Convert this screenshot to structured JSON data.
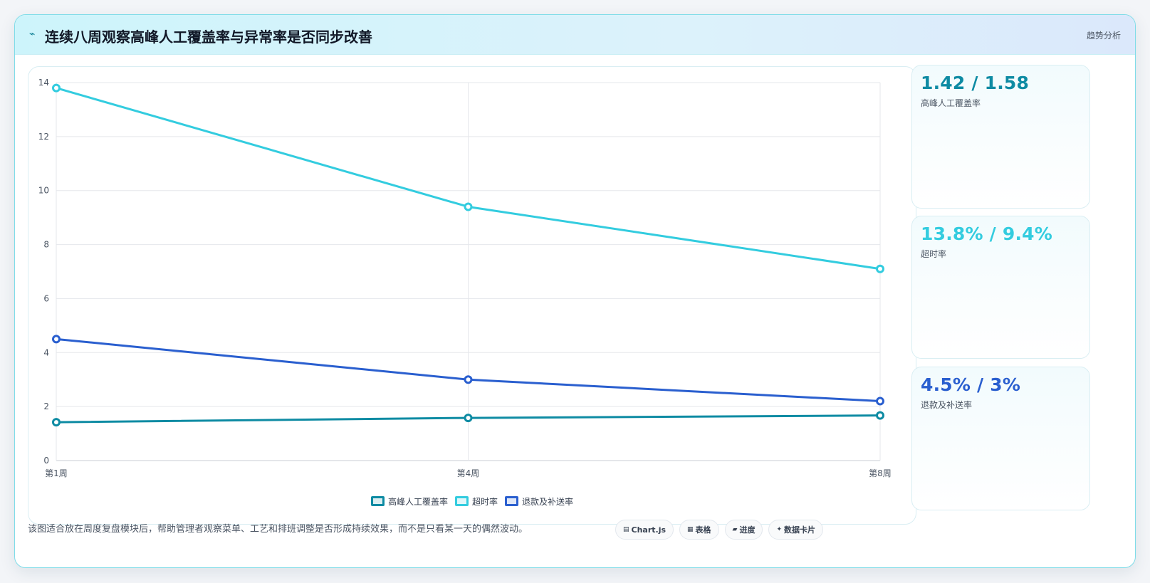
{
  "header": {
    "icon": "bolt-icon",
    "title": "连续八周观察高峰人工覆盖率与异常率是否同步改善",
    "tag": "趋势分析"
  },
  "chart_data": {
    "type": "line",
    "categories": [
      "第1周",
      "第4周",
      "第8周"
    ],
    "y_ticks": [
      "0",
      "2",
      "4",
      "6",
      "8",
      "10",
      "12",
      "14"
    ],
    "ylim": [
      0,
      14
    ],
    "grid": true,
    "legend_position": "bottom",
    "series": [
      {
        "name": "高峰人工覆盖率",
        "values": [
          1.42,
          1.58,
          1.67
        ],
        "color": "#0e8ba3"
      },
      {
        "name": "超时率",
        "values": [
          13.8,
          9.4,
          7.1
        ],
        "color": "#33ccdf"
      },
      {
        "name": "退款及补送率",
        "values": [
          4.5,
          3.0,
          2.2
        ],
        "color": "#2a5fcf"
      }
    ]
  },
  "kpis": [
    {
      "value": "1.42 / 1.58",
      "label": "高峰人工覆盖率",
      "color": "#0e8ba3"
    },
    {
      "value": "13.8% / 9.4%",
      "label": "超时率",
      "color": "#33ccdf"
    },
    {
      "value": "4.5% / 3%",
      "label": "退款及补送率",
      "color": "#2a5fcf"
    }
  ],
  "footer": {
    "note": "该图适合放在周度复盘模块后，帮助管理者观察菜单、工艺和排班调整是否形成持续效果，而不是只看某一天的偶然波动。",
    "chips": [
      {
        "icon": "chart-icon",
        "glyph": "▤",
        "label": "Chart.js"
      },
      {
        "icon": "table-icon",
        "glyph": "▦",
        "label": "表格"
      },
      {
        "icon": "progress-icon",
        "glyph": "▰",
        "label": "进度"
      },
      {
        "icon": "card-icon",
        "glyph": "✦",
        "label": "数据卡片"
      }
    ]
  }
}
